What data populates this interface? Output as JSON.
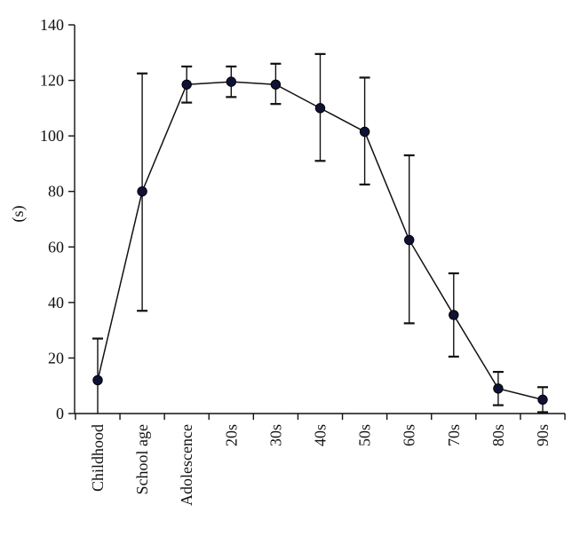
{
  "colors": {
    "line": "#111111",
    "marker": "#0f1236",
    "axis": "#111111",
    "text": "#111111"
  },
  "chart_data": {
    "type": "line",
    "title": "",
    "xlabel": "",
    "ylabel": "(s)",
    "ylim": [
      0,
      140
    ],
    "yticks": [
      0,
      20,
      40,
      60,
      80,
      100,
      120,
      140
    ],
    "grid": false,
    "legend": "none",
    "categories": [
      "Childhood",
      "School age",
      "Adolescence",
      "20s",
      "30s",
      "40s",
      "50s",
      "60s",
      "70s",
      "80s",
      "90s"
    ],
    "series": [
      {
        "values": [
          12,
          80,
          118.5,
          119.5,
          118.5,
          110,
          101.5,
          62.5,
          35.5,
          9,
          5
        ],
        "error_low": [
          0,
          37,
          112,
          114,
          111.5,
          91,
          82.5,
          32.5,
          20.5,
          3,
          0.5
        ],
        "error_high": [
          27,
          122.5,
          125,
          125,
          126,
          129.5,
          121,
          93,
          50.5,
          15,
          9.5
        ],
        "marker": "circle"
      }
    ]
  }
}
